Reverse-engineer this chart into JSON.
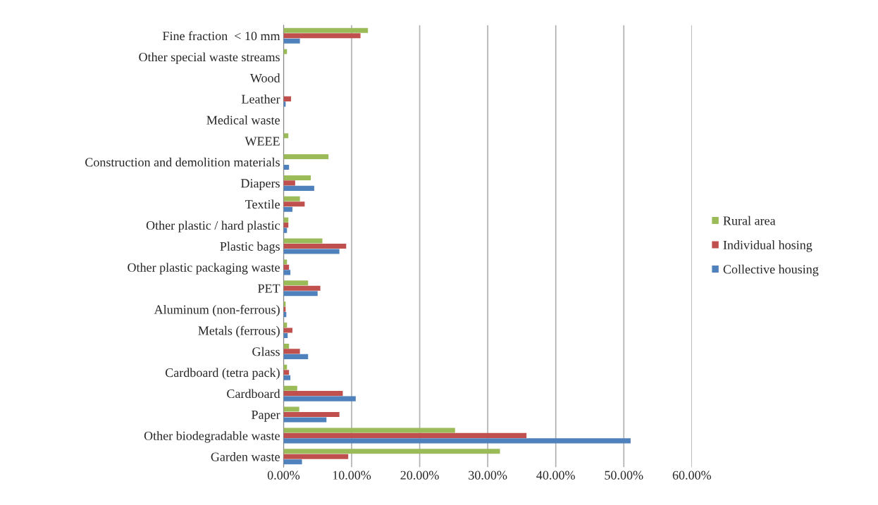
{
  "chart_data": {
    "type": "bar",
    "orientation": "horizontal",
    "categories": [
      "Fine fraction  < 10 mm",
      "Other special waste streams",
      "Wood",
      "Leather",
      "Medical waste",
      "WEEE",
      "Construction and demolition materials",
      "Diapers",
      "Textile",
      "Other plastic / hard plastic",
      "Plastic bags",
      "Other plastic packaging waste",
      "PET",
      "Aluminum (non-ferrous)",
      "Metals (ferrous)",
      "Glass",
      "Cardboard (tetra pack)",
      "Cardboard",
      "Paper",
      "Other biodegradable waste",
      "Garden waste"
    ],
    "series": [
      {
        "name": "Rural area",
        "color": "#9bbb59",
        "values": [
          12.4,
          0.5,
          0,
          0,
          0,
          0.7,
          6.6,
          4.0,
          2.4,
          0.7,
          5.7,
          0.5,
          3.6,
          0.3,
          0.5,
          0.8,
          0.5,
          2.0,
          2.3,
          25.2,
          31.8
        ]
      },
      {
        "name": "Individual hosing",
        "color": "#c0504d",
        "values": [
          11.3,
          0,
          0,
          1.1,
          0,
          0,
          0,
          1.7,
          3.1,
          0.7,
          9.2,
          0.8,
          5.4,
          0.3,
          1.3,
          2.4,
          0.8,
          8.7,
          8.2,
          35.7,
          9.5
        ]
      },
      {
        "name": "Collective housing",
        "color": "#4f81bd",
        "values": [
          2.4,
          0,
          0,
          0.3,
          0,
          0,
          0.8,
          4.5,
          1.3,
          0.5,
          8.2,
          1.0,
          5.0,
          0.4,
          0.6,
          3.6,
          1.0,
          10.6,
          6.3,
          51.0,
          2.7
        ]
      }
    ],
    "xlim": [
      0,
      60
    ],
    "xticks": [
      {
        "value": 0,
        "label": "0.00%"
      },
      {
        "value": 10,
        "label": "10.00%"
      },
      {
        "value": 20,
        "label": "20.00%"
      },
      {
        "value": 30,
        "label": "30.00%"
      },
      {
        "value": 40,
        "label": "40.00%"
      },
      {
        "value": 50,
        "label": "50.00%"
      },
      {
        "value": 60,
        "label": "60.00%"
      }
    ],
    "grid": "x",
    "legend": "right"
  }
}
